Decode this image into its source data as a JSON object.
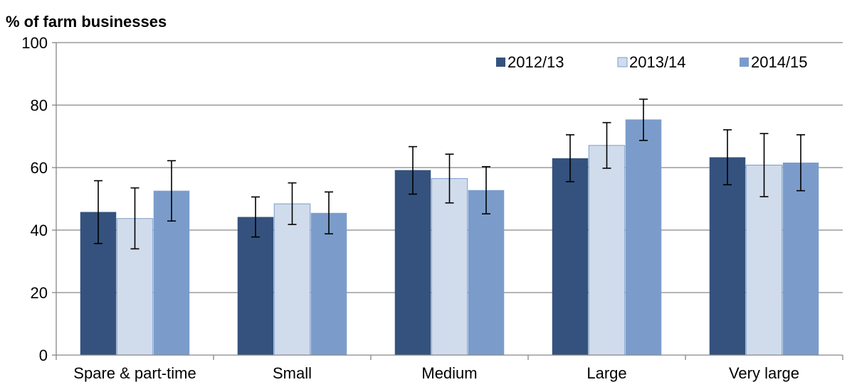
{
  "chart_data": {
    "type": "bar",
    "ylabel": "% of farm businesses",
    "ylim": [
      0,
      100
    ],
    "yticks": [
      0,
      20,
      40,
      60,
      80,
      100
    ],
    "grid": true,
    "legend_position": "top-right",
    "categories": [
      "Spare & part-time",
      "Small",
      "Medium",
      "Large",
      "Very large"
    ],
    "series": [
      {
        "name": "2012/13",
        "color": "#34527d",
        "values": [
          45.8,
          44.2,
          59.2,
          63.0,
          63.3
        ],
        "error_low": [
          35.7,
          37.8,
          51.5,
          55.5,
          54.5
        ],
        "error_high": [
          55.8,
          50.6,
          66.7,
          70.5,
          72.1
        ]
      },
      {
        "name": "2013/14",
        "color": "#d0dcec",
        "values": [
          43.7,
          48.4,
          56.5,
          67.1,
          60.8
        ],
        "error_low": [
          34.0,
          41.8,
          48.7,
          59.8,
          50.7
        ],
        "error_high": [
          53.5,
          55.1,
          64.3,
          74.4,
          70.9
        ]
      },
      {
        "name": "2014/15",
        "color": "#7b9ccb",
        "values": [
          52.6,
          45.5,
          52.8,
          75.4,
          61.6
        ],
        "error_low": [
          42.9,
          38.8,
          45.2,
          68.7,
          52.6
        ],
        "error_high": [
          62.2,
          52.2,
          60.3,
          81.9,
          70.5
        ]
      }
    ]
  }
}
